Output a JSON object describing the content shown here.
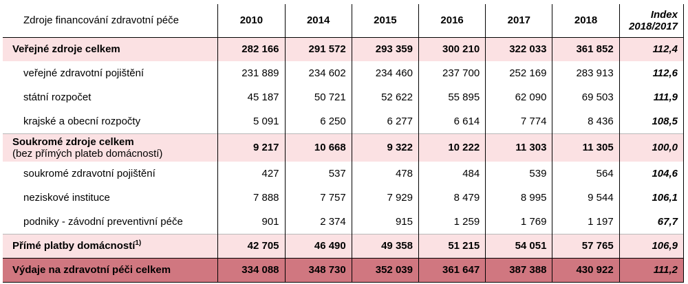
{
  "table": {
    "header": {
      "label": "Zdroje financování zdravotní péče",
      "years": [
        "2010",
        "2014",
        "2015",
        "2016",
        "2017",
        "2018"
      ],
      "index_line1": "Index",
      "index_line2": "2018/2017"
    },
    "rows": [
      {
        "kind": "group",
        "label": "Veřejné zdroje celkem",
        "values": [
          "282 166",
          "291 572",
          "293 359",
          "300 210",
          "322 033",
          "361 852"
        ],
        "index": "112,4"
      },
      {
        "kind": "sub",
        "label": "veřejné zdravotní pojištění",
        "values": [
          "231 889",
          "234 602",
          "234 460",
          "237 700",
          "252 169",
          "283 913"
        ],
        "index": "112,6"
      },
      {
        "kind": "sub",
        "label": "státní rozpočet",
        "values": [
          "45 187",
          "50 721",
          "52 622",
          "55 895",
          "62 090",
          "69 503"
        ],
        "index": "111,9"
      },
      {
        "kind": "sub",
        "label": "krajské a obecní rozpočty",
        "values": [
          "5 091",
          "6 250",
          "6 277",
          "6 614",
          "7 774",
          "8 436"
        ],
        "index": "108,5"
      },
      {
        "kind": "group",
        "label": "Soukromé zdroje celkem",
        "label2": "(bez přímých plateb domácností)",
        "values": [
          "9 217",
          "10 668",
          "9 322",
          "10 222",
          "11 303",
          "11 305"
        ],
        "index": "100,0"
      },
      {
        "kind": "sub",
        "label": "soukromé zdravotní pojištění",
        "values": [
          "427",
          "537",
          "478",
          "484",
          "539",
          "564"
        ],
        "index": "104,6"
      },
      {
        "kind": "sub",
        "label": "neziskové instituce",
        "values": [
          "7 888",
          "7 757",
          "7 929",
          "8 479",
          "8 995",
          "9 544"
        ],
        "index": "106,1"
      },
      {
        "kind": "sub",
        "label": "podniky - závodní preventivní péče",
        "values": [
          "901",
          "2 374",
          "915",
          "1 259",
          "1 769",
          "1 197"
        ],
        "index": "67,7"
      },
      {
        "kind": "group",
        "label": "Přímé platby domácností",
        "sup": "1)",
        "values": [
          "42 705",
          "46 490",
          "49 358",
          "51 215",
          "54 051",
          "57 765"
        ],
        "index": "106,9"
      },
      {
        "kind": "total",
        "label": "Výdaje na zdravotní péči celkem",
        "values": [
          "334 088",
          "348 730",
          "352 039",
          "361 647",
          "387 388",
          "430 922"
        ],
        "index": "111,2"
      }
    ]
  }
}
